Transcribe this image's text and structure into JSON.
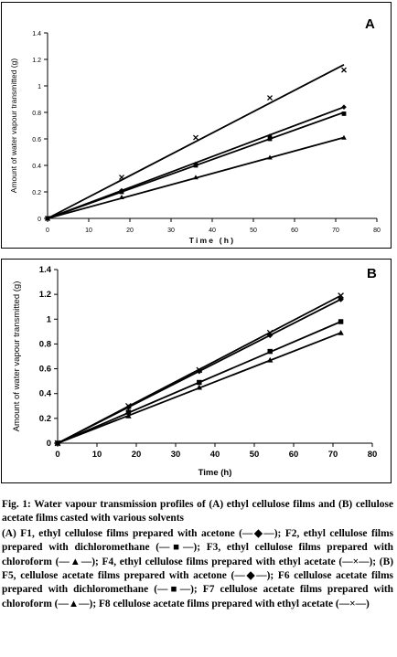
{
  "chart_data": [
    {
      "type": "line",
      "panel_label": "A",
      "xlabel": "Time (h)",
      "ylabel": "Amount of water vapour transmitted (g)",
      "xlim": [
        0,
        80
      ],
      "ylim": [
        0,
        1.4
      ],
      "x_ticks": [
        "0",
        "10",
        "20",
        "30",
        "40",
        "50",
        "60",
        "70",
        "80"
      ],
      "y_ticks": [
        "0",
        "0.2",
        "0.4",
        "0.6",
        "0.8",
        "1",
        "1.2",
        "1.4"
      ],
      "grid": false,
      "x": [
        0,
        18,
        36,
        54,
        72
      ],
      "series": [
        {
          "name": "F1",
          "marker": "diamond",
          "values": [
            0,
            0.21,
            0.41,
            0.62,
            0.84
          ]
        },
        {
          "name": "F2",
          "marker": "square",
          "values": [
            0,
            0.2,
            0.4,
            0.6,
            0.79
          ]
        },
        {
          "name": "F3",
          "marker": "triangle",
          "values": [
            0,
            0.16,
            0.31,
            0.46,
            0.61
          ]
        },
        {
          "name": "F4",
          "marker": "cross",
          "values": [
            0,
            0.31,
            0.61,
            0.91,
            1.12
          ]
        }
      ],
      "trend_end": {
        "F1": 0.84,
        "F2": 0.8,
        "F3": 0.61,
        "F4": 1.16
      }
    },
    {
      "type": "line",
      "panel_label": "B",
      "xlabel": "Time (h)",
      "ylabel": "Amount of water vapour transmitted (g)",
      "xlim": [
        0,
        80
      ],
      "ylim": [
        0,
        1.4
      ],
      "x_ticks": [
        "0",
        "10",
        "20",
        "30",
        "40",
        "50",
        "60",
        "70",
        "80"
      ],
      "y_ticks": [
        "0",
        "0.2",
        "0.4",
        "0.6",
        "0.8",
        "1",
        "1.2",
        "1.4"
      ],
      "grid": false,
      "x": [
        0,
        18,
        36,
        54,
        72
      ],
      "series": [
        {
          "name": "F5",
          "marker": "diamond",
          "values": [
            0,
            0.29,
            0.58,
            0.87,
            1.16
          ]
        },
        {
          "name": "F6",
          "marker": "square",
          "values": [
            0,
            0.25,
            0.49,
            0.74,
            0.98
          ]
        },
        {
          "name": "F7",
          "marker": "triangle",
          "values": [
            0,
            0.22,
            0.45,
            0.67,
            0.89
          ]
        },
        {
          "name": "F8",
          "marker": "cross",
          "values": [
            0,
            0.3,
            0.59,
            0.89,
            1.19
          ]
        }
      ],
      "trend_end": {
        "F5": 1.16,
        "F6": 0.98,
        "F7": 0.89,
        "F8": 1.19
      }
    }
  ],
  "caption": {
    "title": "Fig. 1: Water vapour transmission profiles of (A) ethyl cellulose films and (B) cellulose acetate films casted with various solvents",
    "legend": "(A) F1, ethyl cellulose films prepared with acetone (—◆—); F2, ethyl cellulose films prepared with dichloromethane (—■—); F3, ethyl cellulose films prepared with chloroform (—▲—); F4, ethyl cellulose films prepared with ethyl acetate (—×—); (B) F5, cellulose acetate films prepared with acetone (—◆—); F6 cellulose acetate films prepared with dichloromethane (—■—); F7 cellulose acetate films prepared with chloroform (—▲—); F8 cellulose acetate films prepared with ethyl acetate (—×—)"
  }
}
